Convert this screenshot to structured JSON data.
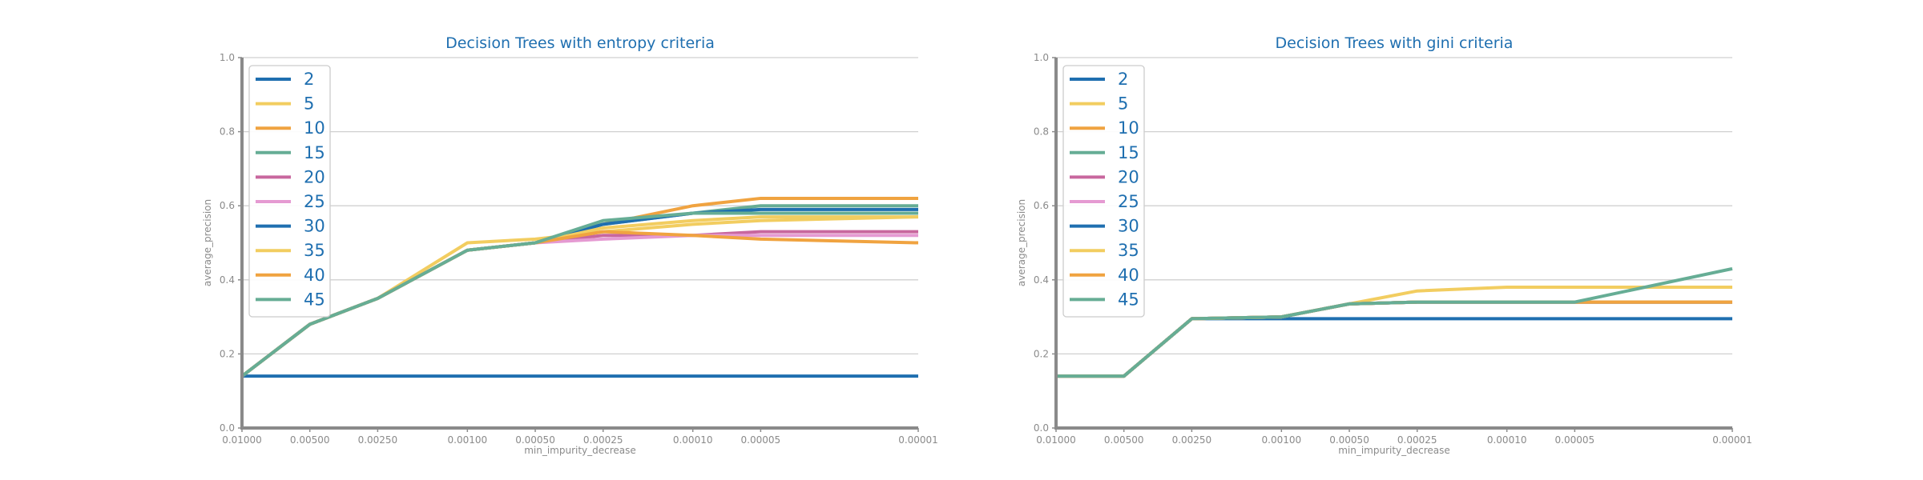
{
  "chart_data": [
    {
      "type": "line",
      "title": "Decision Trees with entropy criteria",
      "xlabel": "min_impurity_decrease",
      "ylabel": "average_precision",
      "ylim": [
        0,
        1
      ],
      "yticks": [
        "0.0",
        "0.2",
        "0.4",
        "0.6",
        "0.8",
        "1.0"
      ],
      "x": [
        "0.01000",
        "0.00500",
        "0.00250",
        "0.00100",
        "0.00050",
        "0.00025",
        "0.00010",
        "0.00005",
        "0.00001"
      ],
      "xticks": [
        "0.01000",
        "0.00500",
        "0.00250",
        "0.00100",
        "0.00050",
        "0.00025",
        "0.00010",
        "0.00005",
        "0.00001"
      ],
      "grid": "horizontal",
      "legend_position": "top-left",
      "series": [
        {
          "name": "2",
          "color": "#1f6fb0",
          "values": [
            0.14,
            0.14,
            0.14,
            0.14,
            0.14,
            0.14,
            0.14,
            0.14,
            0.14
          ]
        },
        {
          "name": "5",
          "color": "#f2cd60",
          "values": [
            0.14,
            0.28,
            0.35,
            0.5,
            0.51,
            0.53,
            0.55,
            0.56,
            0.57
          ]
        },
        {
          "name": "10",
          "color": "#f0a340",
          "values": [
            0.14,
            0.28,
            0.35,
            0.48,
            0.5,
            0.55,
            0.6,
            0.62,
            0.62
          ]
        },
        {
          "name": "15",
          "color": "#66ad95",
          "values": [
            0.14,
            0.28,
            0.35,
            0.48,
            0.5,
            0.55,
            0.58,
            0.6,
            0.6
          ]
        },
        {
          "name": "20",
          "color": "#c8679e",
          "values": [
            0.14,
            0.28,
            0.35,
            0.48,
            0.5,
            0.52,
            0.52,
            0.53,
            0.53
          ]
        },
        {
          "name": "25",
          "color": "#e59ad2",
          "values": [
            0.14,
            0.28,
            0.35,
            0.48,
            0.5,
            0.51,
            0.52,
            0.52,
            0.52
          ]
        },
        {
          "name": "30",
          "color": "#1f6fb0",
          "values": [
            0.14,
            0.28,
            0.35,
            0.48,
            0.5,
            0.55,
            0.58,
            0.59,
            0.59
          ]
        },
        {
          "name": "35",
          "color": "#f2cd60",
          "values": [
            0.14,
            0.28,
            0.35,
            0.48,
            0.5,
            0.54,
            0.56,
            0.57,
            0.57
          ]
        },
        {
          "name": "40",
          "color": "#f0a340",
          "values": [
            0.14,
            0.28,
            0.35,
            0.48,
            0.5,
            0.53,
            0.52,
            0.51,
            0.5
          ]
        },
        {
          "name": "45",
          "color": "#66ad95",
          "values": [
            0.14,
            0.28,
            0.35,
            0.48,
            0.5,
            0.56,
            0.58,
            0.58,
            0.58
          ]
        }
      ]
    },
    {
      "type": "line",
      "title": "Decision Trees with gini criteria",
      "xlabel": "min_impurity_decrease",
      "ylabel": "average_precision",
      "ylim": [
        0,
        1
      ],
      "yticks": [
        "0.0",
        "0.2",
        "0.4",
        "0.6",
        "0.8",
        "1.0"
      ],
      "x": [
        "0.01000",
        "0.00500",
        "0.00250",
        "0.00100",
        "0.00050",
        "0.00025",
        "0.00010",
        "0.00005",
        "0.00001"
      ],
      "xticks": [
        "0.01000",
        "0.00500",
        "0.00250",
        "0.00100",
        "0.00050",
        "0.00025",
        "0.00010",
        "0.00005",
        "0.00001"
      ],
      "grid": "horizontal",
      "legend_position": "top-left",
      "series": [
        {
          "name": "2",
          "color": "#1f6fb0",
          "values": [
            0.14,
            0.14,
            0.295,
            0.295,
            0.295,
            0.295,
            0.295,
            0.295,
            0.295
          ]
        },
        {
          "name": "5",
          "color": "#f2cd60",
          "values": [
            0.14,
            0.14,
            0.295,
            0.3,
            0.335,
            0.37,
            0.38,
            0.38,
            0.38
          ]
        },
        {
          "name": "10",
          "color": "#f0a340",
          "values": [
            0.14,
            0.14,
            0.295,
            0.3,
            0.335,
            0.34,
            0.34,
            0.34,
            0.34
          ]
        },
        {
          "name": "15",
          "color": "#66ad95",
          "values": [
            0.14,
            0.14,
            0.295,
            0.3,
            0.335,
            0.34,
            0.34,
            0.34,
            0.34
          ]
        },
        {
          "name": "20",
          "color": "#c8679e",
          "values": [
            0.14,
            0.14,
            0.295,
            0.3,
            0.335,
            0.34,
            0.34,
            0.34,
            0.34
          ]
        },
        {
          "name": "25",
          "color": "#e59ad2",
          "values": [
            0.14,
            0.14,
            0.295,
            0.3,
            0.335,
            0.34,
            0.34,
            0.34,
            0.34
          ]
        },
        {
          "name": "30",
          "color": "#1f6fb0",
          "values": [
            0.14,
            0.14,
            0.295,
            0.3,
            0.335,
            0.34,
            0.34,
            0.34,
            0.34
          ]
        },
        {
          "name": "35",
          "color": "#f2cd60",
          "values": [
            0.14,
            0.14,
            0.295,
            0.3,
            0.335,
            0.34,
            0.34,
            0.34,
            0.34
          ]
        },
        {
          "name": "40",
          "color": "#f0a340",
          "values": [
            0.14,
            0.14,
            0.295,
            0.3,
            0.335,
            0.34,
            0.34,
            0.34,
            0.34
          ]
        },
        {
          "name": "45",
          "color": "#66ad95",
          "values": [
            0.14,
            0.14,
            0.295,
            0.3,
            0.335,
            0.34,
            0.34,
            0.34,
            0.43
          ]
        }
      ]
    }
  ]
}
